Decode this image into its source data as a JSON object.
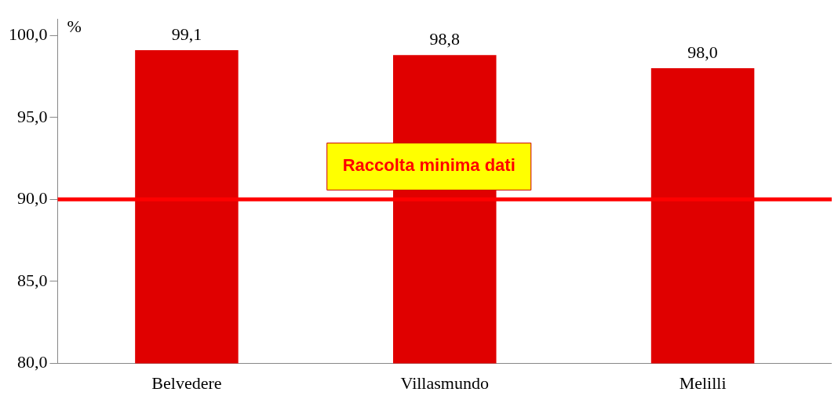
{
  "chart_data": {
    "type": "bar",
    "ylabel": "%",
    "categories": [
      "Belvedere",
      "Villasmundo",
      "Melilli"
    ],
    "values": [
      99.1,
      98.8,
      98.0
    ],
    "value_labels": [
      "99,1",
      "98,8",
      "98,0"
    ],
    "color": "#e00000",
    "ylim": [
      80,
      101
    ],
    "yticks": [
      {
        "value": 80,
        "label": "80,0"
      },
      {
        "value": 85,
        "label": "85,0"
      },
      {
        "value": 90,
        "label": "90,0"
      },
      {
        "value": 95,
        "label": "95,0"
      },
      {
        "value": 100,
        "label": "100,0"
      }
    ],
    "grid": false,
    "legend": false,
    "ref_lines": [
      {
        "axis": "y",
        "value": 90,
        "label": "Raccolta minima dati",
        "color": "#ff0000"
      }
    ]
  }
}
